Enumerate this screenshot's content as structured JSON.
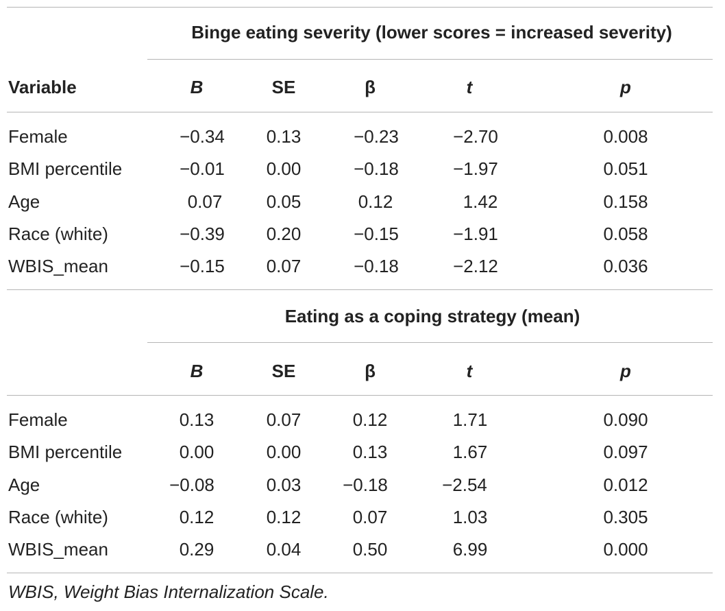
{
  "section1": {
    "title": "Binge eating severity (lower scores = increased severity)",
    "variable_header": "Variable",
    "columns": [
      "B",
      "SE",
      "β",
      "t",
      "p"
    ],
    "rows": [
      {
        "label": "Female",
        "values": [
          "−0.34",
          "0.13",
          "−0.23",
          "−2.70",
          "0.008"
        ]
      },
      {
        "label": "BMI percentile",
        "values": [
          "−0.01",
          "0.00",
          "−0.18",
          "−1.97",
          "0.051"
        ]
      },
      {
        "label": "Age",
        "values": [
          "0.07",
          "0.05",
          "0.12",
          "1.42",
          "0.158"
        ]
      },
      {
        "label": "Race (white)",
        "values": [
          "−0.39",
          "0.20",
          "−0.15",
          "−1.91",
          "0.058"
        ]
      },
      {
        "label": "WBIS_mean",
        "values": [
          "−0.15",
          "0.07",
          "−0.18",
          "−2.12",
          "0.036"
        ]
      }
    ]
  },
  "section2": {
    "title": "Eating as a coping strategy (mean)",
    "columns": [
      "B",
      "SE",
      "β",
      "t",
      "p"
    ],
    "rows": [
      {
        "label": "Female",
        "values": [
          "0.13",
          "0.07",
          "0.12",
          "1.71",
          "0.090"
        ]
      },
      {
        "label": "BMI percentile",
        "values": [
          "0.00",
          "0.00",
          "0.13",
          "1.67",
          "0.097"
        ]
      },
      {
        "label": "Age",
        "values": [
          "−0.08",
          "0.03",
          "−0.18",
          "−2.54",
          "0.012"
        ]
      },
      {
        "label": "Race (white)",
        "values": [
          "0.12",
          "0.12",
          "0.07",
          "1.03",
          "0.305"
        ]
      },
      {
        "label": "WBIS_mean",
        "values": [
          "0.29",
          "0.04",
          "0.50",
          "6.99",
          "0.000"
        ]
      }
    ]
  },
  "footnote": "WBIS, Weight Bias Internalization Scale."
}
